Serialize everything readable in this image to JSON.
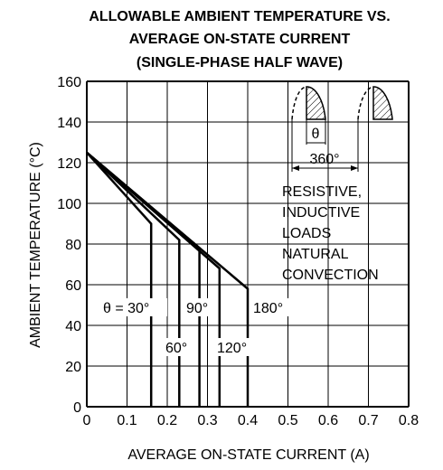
{
  "chart_data": {
    "type": "line",
    "title": [
      "ALLOWABLE AMBIENT TEMPERATURE VS.",
      "AVERAGE ON-STATE CURRENT",
      "(SINGLE-PHASE HALF WAVE)"
    ],
    "xlabel": "AVERAGE ON-STATE CURRENT (A)",
    "ylabel": "AMBIENT TEMPERATURE (°C)",
    "xlim": [
      0,
      0.8
    ],
    "ylim": [
      0,
      160
    ],
    "x_ticks": [
      "0",
      "0.1",
      "0.2",
      "0.3",
      "0.4",
      "0.5",
      "0.6",
      "0.7",
      "0.8"
    ],
    "y_ticks": [
      "0",
      "20",
      "40",
      "60",
      "80",
      "100",
      "120",
      "140",
      "160"
    ],
    "grid": true,
    "series": [
      {
        "name": "θ = 30°",
        "points": [
          [
            0,
            125
          ],
          [
            0.16,
            90
          ],
          [
            0.16,
            0
          ]
        ]
      },
      {
        "name": "60°",
        "points": [
          [
            0,
            125
          ],
          [
            0.23,
            82
          ],
          [
            0.23,
            0
          ]
        ]
      },
      {
        "name": "90°",
        "points": [
          [
            0,
            125
          ],
          [
            0.28,
            78
          ],
          [
            0.28,
            0
          ]
        ]
      },
      {
        "name": "120°",
        "points": [
          [
            0,
            125
          ],
          [
            0.33,
            68
          ],
          [
            0.33,
            0
          ]
        ]
      },
      {
        "name": "180°",
        "points": [
          [
            0,
            125
          ],
          [
            0.4,
            58
          ],
          [
            0.4,
            0
          ]
        ]
      }
    ],
    "annotations": {
      "conditions": [
        "RESISTIVE,",
        "INDUCTIVE",
        "LOADS",
        "NATURAL",
        "CONVECTION"
      ],
      "theta_symbol": "θ",
      "period_label": "360°",
      "series_labels": [
        "θ = 30°",
        "60°",
        "90°",
        "120°",
        "180°"
      ]
    }
  }
}
